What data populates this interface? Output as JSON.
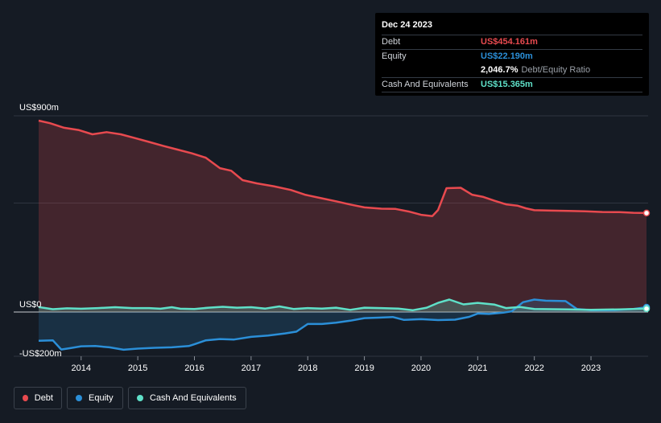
{
  "tooltip": {
    "date": "Dec 24 2023",
    "debt_label": "Debt",
    "debt_value": "US$454.161m",
    "equity_label": "Equity",
    "equity_value": "US$22.190m",
    "ratio_value": "2,046.7%",
    "ratio_label": "Debt/Equity Ratio",
    "cash_label": "Cash And Equivalents",
    "cash_value": "US$15.365m"
  },
  "legend": {
    "debt": "Debt",
    "equity": "Equity",
    "cash": "Cash And Equivalents"
  },
  "colors": {
    "debt": "#e84a4f",
    "equity": "#2b8fd8",
    "cash": "#5fe0c8",
    "background": "#151b24"
  },
  "chart_data": {
    "type": "line",
    "title": "",
    "xlabel": "",
    "ylabel": "",
    "x_range": [
      2013.25,
      2023.98
    ],
    "ylim": [
      -200,
      900
    ],
    "y_tick_labels": [
      {
        "value": 900,
        "label": "US$900m"
      },
      {
        "value": 0,
        "label": "US$0"
      },
      {
        "value": -200,
        "label": "-US$200m"
      }
    ],
    "x_ticks": [
      2014,
      2015,
      2016,
      2017,
      2018,
      2019,
      2020,
      2021,
      2022,
      2023
    ],
    "x_tick_labels": [
      "2014",
      "2015",
      "2016",
      "2017",
      "2018",
      "2019",
      "2020",
      "2021",
      "2022",
      "2023"
    ],
    "series": [
      {
        "name": "Debt",
        "color": "#e84a4f",
        "filled": true,
        "points": [
          [
            2013.25,
            878
          ],
          [
            2013.45,
            866
          ],
          [
            2013.7,
            845
          ],
          [
            2013.95,
            835
          ],
          [
            2014.2,
            815
          ],
          [
            2014.45,
            825
          ],
          [
            2014.7,
            815
          ],
          [
            2014.95,
            798
          ],
          [
            2015.2,
            780
          ],
          [
            2015.45,
            762
          ],
          [
            2015.7,
            745
          ],
          [
            2015.95,
            728
          ],
          [
            2016.2,
            708
          ],
          [
            2016.45,
            660
          ],
          [
            2016.65,
            648
          ],
          [
            2016.85,
            605
          ],
          [
            2017.1,
            590
          ],
          [
            2017.4,
            577
          ],
          [
            2017.7,
            560
          ],
          [
            2017.95,
            538
          ],
          [
            2018.2,
            524
          ],
          [
            2018.5,
            508
          ],
          [
            2018.75,
            493
          ],
          [
            2019.0,
            480
          ],
          [
            2019.3,
            474
          ],
          [
            2019.55,
            473
          ],
          [
            2019.8,
            460
          ],
          [
            2020.0,
            446
          ],
          [
            2020.2,
            440
          ],
          [
            2020.3,
            468
          ],
          [
            2020.45,
            568
          ],
          [
            2020.7,
            570
          ],
          [
            2020.9,
            538
          ],
          [
            2021.1,
            528
          ],
          [
            2021.3,
            510
          ],
          [
            2021.5,
            494
          ],
          [
            2021.7,
            488
          ],
          [
            2021.85,
            476
          ],
          [
            2022.0,
            467
          ],
          [
            2022.3,
            465
          ],
          [
            2022.6,
            464
          ],
          [
            2022.9,
            462
          ],
          [
            2023.2,
            459
          ],
          [
            2023.5,
            458
          ],
          [
            2023.75,
            455
          ],
          [
            2023.98,
            454.161
          ]
        ]
      },
      {
        "name": "Equity",
        "color": "#2b8fd8",
        "filled": true,
        "points": [
          [
            2013.25,
            -132
          ],
          [
            2013.5,
            -130
          ],
          [
            2013.65,
            -172
          ],
          [
            2013.8,
            -166
          ],
          [
            2014.0,
            -157
          ],
          [
            2014.25,
            -156
          ],
          [
            2014.5,
            -162
          ],
          [
            2014.75,
            -173
          ],
          [
            2015.0,
            -168
          ],
          [
            2015.3,
            -164
          ],
          [
            2015.6,
            -162
          ],
          [
            2015.9,
            -156
          ],
          [
            2016.0,
            -148
          ],
          [
            2016.2,
            -130
          ],
          [
            2016.45,
            -124
          ],
          [
            2016.7,
            -126
          ],
          [
            2017.0,
            -114
          ],
          [
            2017.3,
            -108
          ],
          [
            2017.6,
            -98
          ],
          [
            2017.8,
            -90
          ],
          [
            2018.0,
            -55
          ],
          [
            2018.25,
            -55
          ],
          [
            2018.5,
            -49
          ],
          [
            2018.75,
            -40
          ],
          [
            2019.0,
            -28
          ],
          [
            2019.25,
            -26
          ],
          [
            2019.5,
            -23
          ],
          [
            2019.7,
            -36
          ],
          [
            2020.0,
            -33
          ],
          [
            2020.3,
            -37
          ],
          [
            2020.6,
            -35
          ],
          [
            2020.85,
            -22
          ],
          [
            2021.0,
            -7
          ],
          [
            2021.2,
            -9
          ],
          [
            2021.45,
            -3
          ],
          [
            2021.6,
            3
          ],
          [
            2021.8,
            45
          ],
          [
            2022.0,
            57
          ],
          [
            2022.2,
            52
          ],
          [
            2022.55,
            50
          ],
          [
            2022.75,
            14
          ],
          [
            2023.0,
            8
          ],
          [
            2023.4,
            9
          ],
          [
            2023.75,
            14
          ],
          [
            2023.98,
            22.19
          ]
        ]
      },
      {
        "name": "Cash And Equivalents",
        "color": "#5fe0c8",
        "filled": true,
        "points": [
          [
            2013.25,
            23
          ],
          [
            2013.5,
            13
          ],
          [
            2013.75,
            17
          ],
          [
            2014.0,
            15
          ],
          [
            2014.3,
            18
          ],
          [
            2014.6,
            22
          ],
          [
            2014.9,
            18
          ],
          [
            2015.2,
            18
          ],
          [
            2015.4,
            15
          ],
          [
            2015.6,
            22
          ],
          [
            2015.75,
            15
          ],
          [
            2016.0,
            14
          ],
          [
            2016.25,
            20
          ],
          [
            2016.5,
            24
          ],
          [
            2016.75,
            20
          ],
          [
            2017.0,
            22
          ],
          [
            2017.25,
            16
          ],
          [
            2017.5,
            26
          ],
          [
            2017.75,
            14
          ],
          [
            2018.0,
            18
          ],
          [
            2018.25,
            16
          ],
          [
            2018.5,
            20
          ],
          [
            2018.75,
            10
          ],
          [
            2019.0,
            20
          ],
          [
            2019.3,
            18
          ],
          [
            2019.6,
            16
          ],
          [
            2019.85,
            8
          ],
          [
            2020.1,
            20
          ],
          [
            2020.3,
            42
          ],
          [
            2020.5,
            57
          ],
          [
            2020.75,
            35
          ],
          [
            2021.0,
            42
          ],
          [
            2021.3,
            34
          ],
          [
            2021.5,
            18
          ],
          [
            2021.75,
            23
          ],
          [
            2022.0,
            14
          ],
          [
            2022.3,
            13
          ],
          [
            2022.6,
            12
          ],
          [
            2023.0,
            10
          ],
          [
            2023.5,
            12
          ],
          [
            2023.98,
            15.365
          ]
        ]
      }
    ]
  }
}
